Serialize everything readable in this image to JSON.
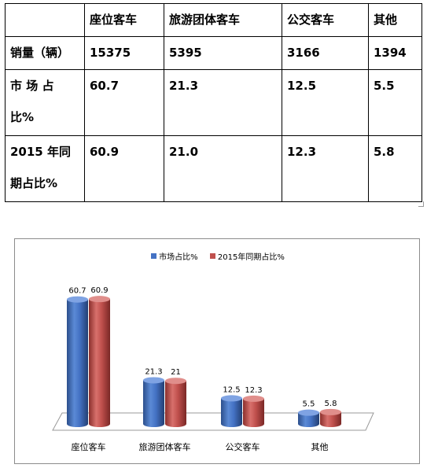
{
  "table": {
    "header": [
      "",
      "座位客车",
      "旅游团体客车",
      "公交客车",
      "其他"
    ],
    "rows": [
      {
        "label": "销量（辆）",
        "values": [
          "15375",
          "5395",
          "3166",
          "1394"
        ]
      },
      {
        "label": "市 场 占 比%",
        "values": [
          "60.7",
          "21.3",
          "12.5",
          "5.5"
        ]
      },
      {
        "label": "2015 年同期占比%",
        "values": [
          "60.9",
          "21.0",
          "12.3",
          "5.8"
        ]
      }
    ]
  },
  "chart_data": {
    "type": "bar",
    "categories": [
      "座位客车",
      "旅游团体客车",
      "公交客车",
      "其他"
    ],
    "series": [
      {
        "name": "市场占比%",
        "values": [
          60.7,
          21.3,
          12.5,
          5.5
        ],
        "labels": [
          "60.7",
          "21.3",
          "12.5",
          "5.5"
        ],
        "color": "#4472c4"
      },
      {
        "name": "2015年同期占比%",
        "values": [
          60.9,
          21.0,
          12.3,
          5.8
        ],
        "labels": [
          "60.9",
          "21",
          "12.3",
          "5.8"
        ],
        "color": "#c0504d"
      }
    ],
    "ylim": [
      0,
      70
    ],
    "legend": "top-center",
    "grid": false,
    "style": "3d-cylinder"
  }
}
